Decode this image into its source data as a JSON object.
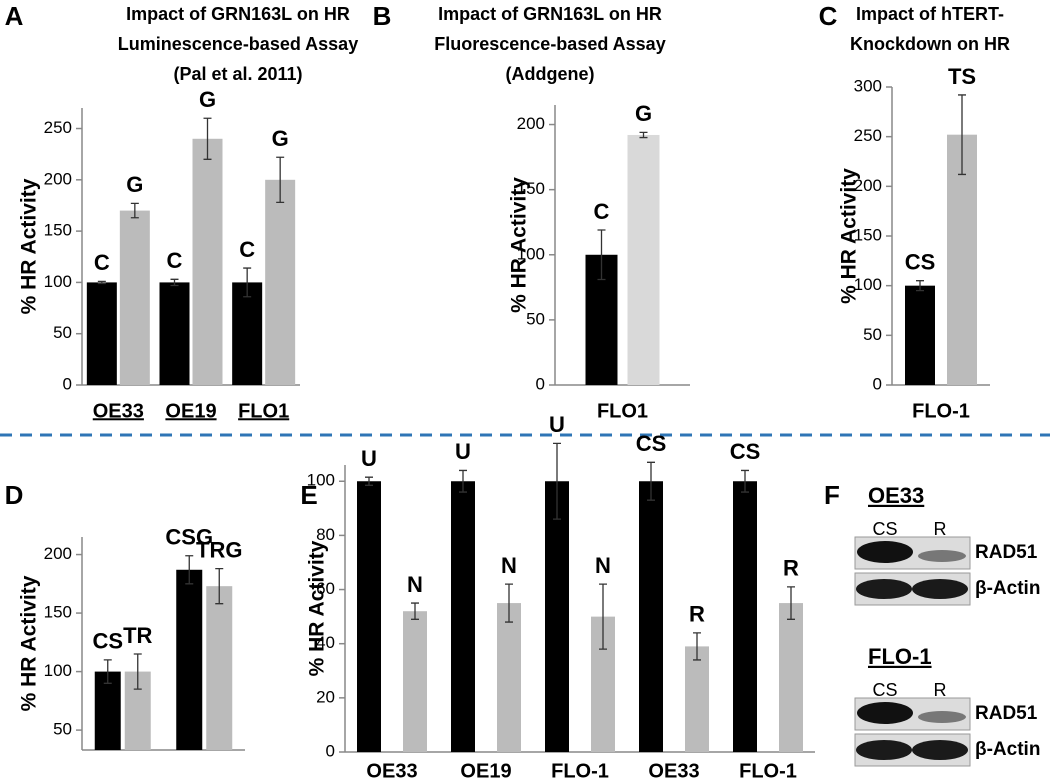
{
  "chart_data": [
    {
      "type": "bar",
      "panel": "A",
      "title": [
        "Impact of GRN163L on HR",
        "Luminescence-based Assay",
        "(Pal et al. 2011)"
      ],
      "ylabel": "% HR Activity",
      "categories": [
        "OE33",
        "OE19",
        "FLO1"
      ],
      "category_underline": true,
      "series": [
        {
          "color": "#000000",
          "values": [
            100,
            100,
            100
          ],
          "errors": [
            1,
            3,
            14
          ],
          "labels": [
            "C",
            "C",
            "C"
          ]
        },
        {
          "color": "#bbbbbb",
          "values": [
            170,
            240,
            200
          ],
          "errors": [
            7,
            20,
            22
          ],
          "labels": [
            "G",
            "G",
            "G"
          ]
        }
      ],
      "ylim": [
        0,
        270
      ],
      "yticks": [
        0,
        50,
        100,
        150,
        200,
        250
      ]
    },
    {
      "type": "bar",
      "panel": "B",
      "title": [
        "Impact of GRN163L on HR",
        "Fluorescence-based Assay",
        "(Addgene)"
      ],
      "ylabel": "% HR Activity",
      "categories": [
        "FLO1"
      ],
      "series": [
        {
          "color": "#000000",
          "values": [
            100
          ],
          "errors": [
            19
          ],
          "labels": [
            "C"
          ]
        },
        {
          "color": "#d9d9d9",
          "values": [
            192
          ],
          "errors": [
            2
          ],
          "labels": [
            "G"
          ]
        }
      ],
      "ylim": [
        0,
        215
      ],
      "yticks": [
        0,
        50,
        100,
        150,
        200
      ]
    },
    {
      "type": "bar",
      "panel": "C",
      "title": [
        "Impact of hTERT-",
        "Knockdown on HR"
      ],
      "ylabel": "% HR Activity",
      "categories": [
        "FLO-1"
      ],
      "series": [
        {
          "color": "#000000",
          "values": [
            100
          ],
          "errors": [
            5
          ],
          "labels": [
            "CS"
          ]
        },
        {
          "color": "#bbbbbb",
          "values": [
            252
          ],
          "errors": [
            40
          ],
          "labels": [
            "TS"
          ]
        }
      ],
      "ylim": [
        0,
        300
      ],
      "yticks": [
        0,
        50,
        100,
        150,
        200,
        250,
        300
      ]
    },
    {
      "type": "bar",
      "panel": "D",
      "ylabel": "% HR Activity",
      "categories": [
        null,
        null
      ],
      "series": [
        {
          "color": "#000000",
          "values": [
            100,
            187
          ],
          "errors": [
            10,
            12
          ],
          "labels": [
            "CS",
            "CSG"
          ]
        },
        {
          "color": "#bbbbbb",
          "values": [
            100,
            173
          ],
          "errors": [
            15,
            15
          ],
          "labels": [
            "TR",
            "TRG"
          ]
        }
      ],
      "ylim": [
        33,
        215
      ],
      "yticks": [
        50,
        100,
        150,
        200
      ]
    },
    {
      "type": "bar",
      "panel": "E",
      "ylabel": "% HR Activity",
      "categories": [
        "OE33",
        "OE19",
        "FLO-1",
        "OE33",
        "FLO-1"
      ],
      "series": [
        {
          "color": "#000000",
          "values": [
            100,
            100,
            100,
            100,
            100
          ],
          "errors": [
            1.5,
            4,
            14,
            7,
            4
          ],
          "labels": [
            "U",
            "U",
            "U",
            "CS",
            "CS"
          ]
        },
        {
          "color": "#bbbbbb",
          "values": [
            52,
            55,
            50,
            39,
            55
          ],
          "errors": [
            3,
            7,
            12,
            5,
            6
          ],
          "labels": [
            "N",
            "N",
            "N",
            "R",
            "R"
          ]
        }
      ],
      "ylim": [
        0,
        106
      ],
      "yticks": [
        0,
        20,
        40,
        60,
        80,
        100
      ]
    }
  ],
  "western_blot": {
    "panel": "F",
    "blots": [
      {
        "cell_line": "OE33",
        "lanes": [
          "CS",
          "R"
        ],
        "proteins": [
          "RAD51",
          "β-Actin"
        ]
      },
      {
        "cell_line": "FLO-1",
        "lanes": [
          "CS",
          "R"
        ],
        "proteins": [
          "RAD51",
          "β-Actin"
        ]
      }
    ]
  }
}
